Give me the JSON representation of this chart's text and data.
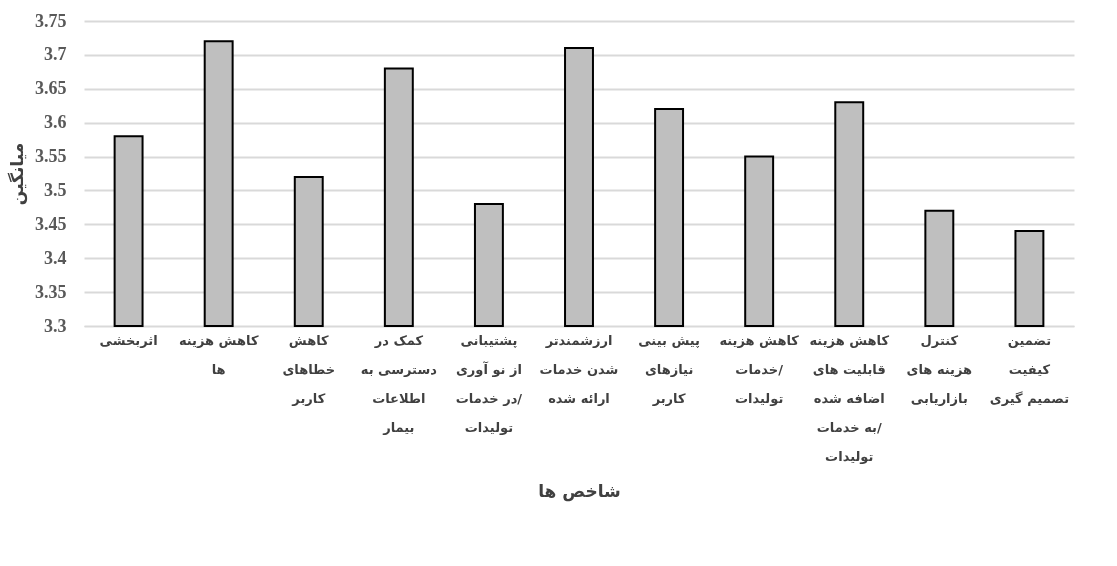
{
  "chart_data": {
    "type": "bar",
    "xlabel": "شاخص ها",
    "ylabel": "میانگین",
    "categories": [
      "اثربخشی",
      "کاهش هزینه ها",
      "کاهش خطاهای کاربر",
      "کمک در دسترسی به اطلاعات بیمار",
      "پشتیبانی از نو آوری در خدمات/ تولیدات",
      "ارزشمندتر شدن خدمات ارائه شده",
      "پیش بینی نیازهای کاربر",
      "کاهش هزینه خدمات/ تولیدات",
      "کاهش هزینه قابلیت های اضافه شده به خدمات/ تولیدات",
      "کنترل هزینه های بازاریابی",
      "تضمین کیفیت تصمیم گیری"
    ],
    "values": [
      3.58,
      3.72,
      3.52,
      3.68,
      3.48,
      3.71,
      3.62,
      3.55,
      3.63,
      3.47,
      3.44
    ],
    "color": "#bfbfbf",
    "ylim": [
      3.3,
      3.75
    ],
    "yticks": [
      3.3,
      3.35,
      3.4,
      3.45,
      3.5,
      3.55,
      3.6,
      3.65,
      3.7,
      3.75
    ],
    "grid": "y"
  }
}
